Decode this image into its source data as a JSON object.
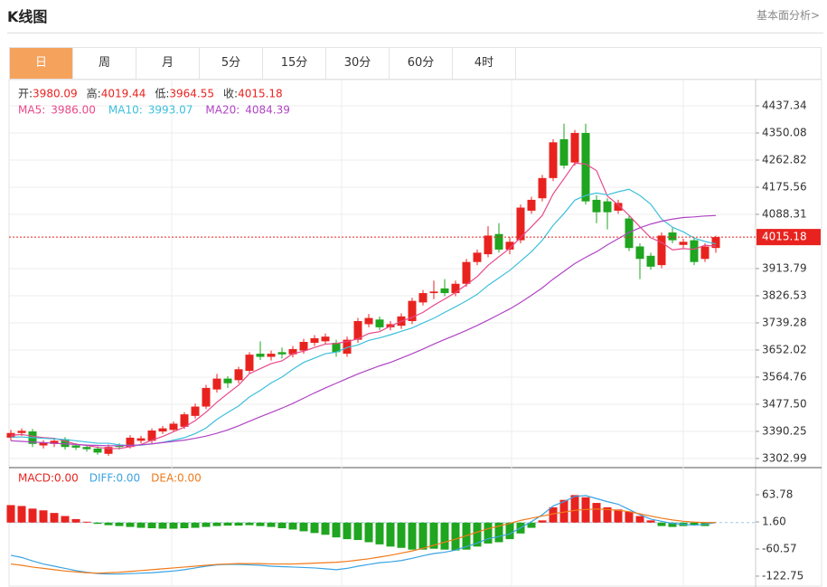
{
  "header": {
    "title": "K线图",
    "link": "基本面分析>"
  },
  "tabs": [
    "日",
    "周",
    "月",
    "5分",
    "15分",
    "30分",
    "60分",
    "4时"
  ],
  "active_tab": 0,
  "chart_data": [
    {
      "type": "candlestick",
      "up_color": "#e8231f",
      "down_color": "#1fa51f",
      "last_line_color": "#e8231f",
      "ohlc_legend": [
        "开:",
        "高:",
        "低:",
        "收:"
      ],
      "candles": [
        [
          3370,
          3395,
          3360,
          3385
        ],
        [
          3385,
          3400,
          3375,
          3392
        ],
        [
          3390,
          3398,
          3340,
          3350
        ],
        [
          3345,
          3362,
          3335,
          3355
        ],
        [
          3350,
          3368,
          3340,
          3360
        ],
        [
          3365,
          3372,
          3332,
          3340
        ],
        [
          3345,
          3352,
          3330,
          3338
        ],
        [
          3340,
          3348,
          3325,
          3333
        ],
        [
          3335,
          3342,
          3315,
          3322
        ],
        [
          3318,
          3348,
          3312,
          3340
        ],
        [
          3345,
          3352,
          3332,
          3340
        ],
        [
          3340,
          3378,
          3335,
          3370
        ],
        [
          3360,
          3376,
          3352,
          3368
        ],
        [
          3360,
          3400,
          3352,
          3393
        ],
        [
          3390,
          3408,
          3382,
          3400
        ],
        [
          3395,
          3422,
          3388,
          3415
        ],
        [
          3405,
          3452,
          3398,
          3445
        ],
        [
          3440,
          3480,
          3432,
          3470
        ],
        [
          3470,
          3540,
          3462,
          3530
        ],
        [
          3525,
          3575,
          3515,
          3560
        ],
        [
          3560,
          3568,
          3530,
          3545
        ],
        [
          3555,
          3598,
          3545,
          3590
        ],
        [
          3585,
          3645,
          3575,
          3637
        ],
        [
          3640,
          3680,
          3620,
          3630
        ],
        [
          3630,
          3650,
          3618,
          3640
        ],
        [
          3645,
          3660,
          3625,
          3638
        ],
        [
          3638,
          3665,
          3628,
          3655
        ],
        [
          3650,
          3688,
          3640,
          3678
        ],
        [
          3675,
          3700,
          3665,
          3690
        ],
        [
          3680,
          3705,
          3670,
          3695
        ],
        [
          3675,
          3685,
          3630,
          3645
        ],
        [
          3640,
          3695,
          3630,
          3685
        ],
        [
          3685,
          3755,
          3675,
          3745
        ],
        [
          3735,
          3768,
          3725,
          3755
        ],
        [
          3750,
          3760,
          3715,
          3725
        ],
        [
          3725,
          3745,
          3715,
          3735
        ],
        [
          3730,
          3770,
          3720,
          3760
        ],
        [
          3745,
          3820,
          3735,
          3810
        ],
        [
          3805,
          3845,
          3795,
          3835
        ],
        [
          3835,
          3875,
          3815,
          3840
        ],
        [
          3850,
          3880,
          3825,
          3835
        ],
        [
          3835,
          3875,
          3825,
          3865
        ],
        [
          3865,
          3945,
          3855,
          3935
        ],
        [
          3935,
          3975,
          3925,
          3965
        ],
        [
          3960,
          4050,
          3950,
          4020
        ],
        [
          4025,
          4060,
          3965,
          3975
        ],
        [
          3975,
          4015,
          3960,
          4000
        ],
        [
          4005,
          4120,
          3995,
          4110
        ],
        [
          4100,
          4145,
          4090,
          4135
        ],
        [
          4140,
          4215,
          4130,
          4205
        ],
        [
          4205,
          4330,
          4195,
          4320
        ],
        [
          4330,
          4380,
          4235,
          4245
        ],
        [
          4255,
          4360,
          4245,
          4350
        ],
        [
          4350,
          4380,
          4120,
          4130
        ],
        [
          4135,
          4150,
          4060,
          4095
        ],
        [
          4130,
          4140,
          4040,
          4095
        ],
        [
          4100,
          4135,
          4090,
          4125
        ],
        [
          4075,
          4085,
          3970,
          3980
        ],
        [
          3985,
          3995,
          3880,
          3945
        ],
        [
          3955,
          3965,
          3910,
          3920
        ],
        [
          3925,
          4030,
          3915,
          4020
        ],
        [
          4030,
          4045,
          3995,
          4005
        ],
        [
          3990,
          4010,
          3980,
          4000
        ],
        [
          4005,
          4015,
          3925,
          3935
        ],
        [
          3945,
          3995,
          3935,
          3985
        ],
        [
          3980.09,
          4019.44,
          3964.55,
          4015.18
        ]
      ],
      "series": [
        {
          "color": "#e8488a",
          "values": [
            3378,
            3380,
            3375,
            3370,
            3368,
            3359,
            3349,
            3345,
            3339,
            3335,
            3335,
            3341,
            3348,
            3362,
            3374,
            3389,
            3404,
            3425,
            3452,
            3484,
            3512,
            3539,
            3576,
            3592,
            3608,
            3617,
            3640,
            3648,
            3660,
            3671,
            3673,
            3679,
            3688,
            3705,
            3711,
            3729,
            3744,
            3757,
            3773,
            3796,
            3816,
            3837,
            3862,
            3888,
            3924,
            3952,
            3979,
            4014,
            4048,
            4085,
            4154,
            4203,
            4253,
            4250,
            4229,
            4147,
            4119,
            4085,
            4048,
            4013,
            3998,
            3974,
            3978,
            3976,
            3989,
            3986
          ]
        },
        {
          "color": "#3dbfdc",
          "values": [
            3372,
            3372,
            3370,
            3368,
            3366,
            3364,
            3360,
            3356,
            3352,
            3352,
            3347,
            3345,
            3346,
            3350,
            3355,
            3362,
            3370,
            3383,
            3401,
            3429,
            3451,
            3472,
            3501,
            3522,
            3546,
            3565,
            3590,
            3612,
            3626,
            3640,
            3645,
            3660,
            3668,
            3683,
            3691,
            3701,
            3712,
            3723,
            3739,
            3754,
            3773,
            3791,
            3810,
            3831,
            3860,
            3884,
            3908,
            3938,
            3968,
            4005,
            4053,
            4091,
            4134,
            4149,
            4157,
            4151,
            4161,
            4169,
            4149,
            4121,
            4073,
            4047,
            4032,
            4012,
            4001,
            3993.07
          ]
        },
        {
          "color": "#b044c4",
          "values": [
            3360,
            3358,
            3356,
            3354,
            3352,
            3350,
            3348,
            3346,
            3345,
            3344,
            3344,
            3345,
            3347,
            3350,
            3354,
            3358,
            3362,
            3368,
            3375,
            3384,
            3395,
            3408,
            3423,
            3437,
            3451,
            3465,
            3480,
            3497,
            3514,
            3530,
            3545,
            3560,
            3575,
            3588,
            3601,
            3612,
            3626,
            3640,
            3655,
            3671,
            3686,
            3700,
            3715,
            3731,
            3748,
            3766,
            3784,
            3805,
            3828,
            3852,
            3880,
            3905,
            3930,
            3950,
            3968,
            3990,
            4010,
            4030,
            4045,
            4057,
            4066,
            4073,
            4078,
            4080,
            4083,
            4084.39
          ]
        }
      ],
      "ma_legend": [
        {
          "label": "MA5:",
          "value_label": "3986.00"
        },
        {
          "label": "MA10:",
          "value_label": "3993.07"
        },
        {
          "label": "MA20:",
          "value_label": "4084.39"
        }
      ],
      "ylim": [
        3273.7,
        4521.7
      ],
      "yticks": [
        4437.34,
        4350.08,
        4262.82,
        4175.56,
        4088.31,
        3913.79,
        3826.53,
        3739.28,
        3652.02,
        3564.76,
        {
          "value": 3477.5,
          "label": "3477.50"
        },
        3390.25,
        3302.99
      ],
      "grid": true
    },
    {
      "type": "macd",
      "up_color": "#e8231f",
      "down_color": "#1fa51f",
      "values": [
        40,
        38,
        32,
        28,
        22,
        15,
        8,
        2,
        -3,
        -6,
        -8,
        -10,
        -12,
        -13,
        -14,
        -14,
        -13,
        -12,
        -10,
        -8,
        -7,
        -7,
        -6,
        -8,
        -10,
        -13,
        -16,
        -20,
        -24,
        -28,
        -34,
        -38,
        -40,
        -45,
        -50,
        -55,
        -58,
        -62,
        -62,
        -60,
        -62,
        -64,
        -62,
        -55,
        -48,
        -45,
        -38,
        -25,
        -12,
        5,
        35,
        52,
        63,
        58,
        45,
        35,
        30,
        25,
        15,
        5,
        -8,
        -10,
        -8,
        -6,
        -8,
        0
      ],
      "series": [
        {
          "color": "#3aa3e3",
          "values": [
            -75,
            -80,
            -88,
            -95,
            -100,
            -105,
            -110,
            -114,
            -117,
            -118,
            -118,
            -117,
            -116,
            -115,
            -113,
            -111,
            -108,
            -104,
            -100,
            -97,
            -96,
            -96,
            -97,
            -98,
            -100,
            -101,
            -102,
            -103,
            -104,
            -106,
            -108,
            -105,
            -100,
            -96,
            -92,
            -90,
            -87,
            -82,
            -76,
            -71,
            -68,
            -63,
            -55,
            -47,
            -37,
            -32,
            -26,
            -12,
            2,
            18,
            38,
            48,
            60,
            62,
            55,
            48,
            42,
            30,
            18,
            8,
            3,
            -2,
            -4,
            -6,
            -4,
            0
          ]
        },
        {
          "color": "#f07a1a",
          "values": [
            -95,
            -98,
            -102,
            -105,
            -108,
            -111,
            -113,
            -115,
            -116,
            -115,
            -114,
            -112,
            -110,
            -108,
            -106,
            -104,
            -102,
            -100,
            -98,
            -96,
            -95,
            -94,
            -94,
            -94,
            -95,
            -95,
            -95,
            -94,
            -93,
            -92,
            -91,
            -89,
            -86,
            -83,
            -79,
            -75,
            -70,
            -65,
            -59,
            -52,
            -45,
            -38,
            -30,
            -22,
            -14,
            -8,
            -2,
            5,
            10,
            15,
            20,
            24,
            28,
            30,
            31,
            30,
            28,
            25,
            20,
            15,
            10,
            6,
            3,
            1,
            0,
            0
          ]
        }
      ],
      "legend": [
        {
          "label": "MACD:",
          "value_label": "0.00"
        },
        {
          "label": "DIFF:",
          "value_label": "0.00"
        },
        {
          "label": "DEA:",
          "value_label": "0.00"
        }
      ],
      "ylim": [
        -147.7,
        126
      ],
      "yticks": [
        63.78,
        {
          "value": 1.6,
          "label": "1.60"
        },
        -60.57,
        -122.75
      ],
      "grid": false
    }
  ]
}
